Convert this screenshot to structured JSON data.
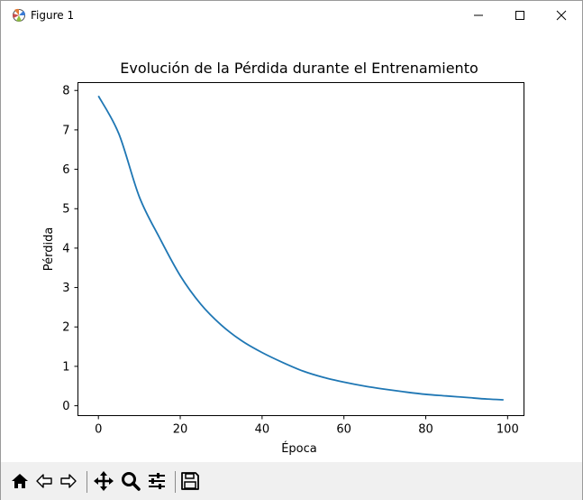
{
  "window": {
    "title": "Figure 1",
    "icon": "matplotlib-figure-icon"
  },
  "toolbar": {
    "tools": [
      "home-icon",
      "back-arrow-icon",
      "forward-arrow-icon",
      "pan-move-icon",
      "zoom-magnifier-icon",
      "configure-subplots-icon",
      "save-floppy-icon"
    ]
  },
  "chart_data": {
    "type": "line",
    "title": "Evolución de la Pérdida durante el Entrenamiento",
    "xlabel": "Época",
    "ylabel": "Pérdida",
    "xlim": [
      -5,
      104
    ],
    "ylim": [
      -0.25,
      8.2
    ],
    "x_ticks": [
      0,
      20,
      40,
      60,
      80,
      100
    ],
    "y_ticks": [
      0,
      1,
      2,
      3,
      4,
      5,
      6,
      7,
      8
    ],
    "x_tick_labels": [
      "0",
      "20",
      "40",
      "60",
      "80",
      "100"
    ],
    "y_tick_labels": [
      "0",
      "1",
      "2",
      "3",
      "4",
      "5",
      "6",
      "7",
      "8"
    ],
    "grid": false,
    "series": [
      {
        "color": "#1f77b4",
        "x": [
          0,
          5,
          10,
          15,
          20,
          25,
          30,
          35,
          40,
          45,
          50,
          55,
          60,
          65,
          70,
          75,
          80,
          85,
          90,
          95,
          99
        ],
        "y": [
          7.86,
          6.9,
          5.3,
          4.25,
          3.3,
          2.58,
          2.05,
          1.65,
          1.35,
          1.1,
          0.88,
          0.72,
          0.6,
          0.5,
          0.42,
          0.35,
          0.29,
          0.25,
          0.21,
          0.17,
          0.15
        ]
      }
    ]
  }
}
